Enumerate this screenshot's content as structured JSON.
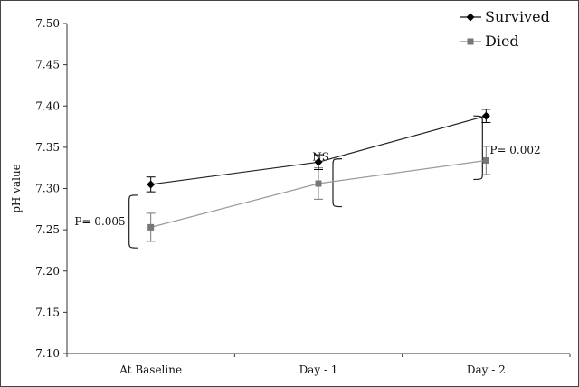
{
  "chart_data": {
    "type": "line",
    "categories": [
      "At Baseline",
      "Day - 1",
      "Day - 2"
    ],
    "ylabel": "pH value",
    "ylim": [
      7.1,
      7.5
    ],
    "yticks": [
      "7.10",
      "7.15",
      "7.20",
      "7.25",
      "7.30",
      "7.35",
      "7.40",
      "7.45",
      "7.50"
    ],
    "grid": false,
    "legend_position": "top-right",
    "series": [
      {
        "name": "Survived",
        "values": [
          7.305,
          7.332,
          7.388
        ],
        "err": [
          0.009,
          0.009,
          0.008
        ],
        "color": "#000000",
        "line_color": "#222222",
        "marker": "diamond"
      },
      {
        "name": "Died",
        "values": [
          7.253,
          7.306,
          7.334
        ],
        "err": [
          0.017,
          0.019,
          0.017
        ],
        "color": "#777777",
        "line_color": "#9a9a9a",
        "marker": "square"
      }
    ],
    "annotations": [
      {
        "text": "P= 0.005",
        "category": "At Baseline",
        "y_low": 7.228,
        "y_high": 7.292
      },
      {
        "text": "NS",
        "category": "Day - 1",
        "y_low": 7.278,
        "y_high": 7.336
      },
      {
        "text": "P= 0.002",
        "category": "Day - 2",
        "y_low": 7.311,
        "y_high": 7.388
      }
    ]
  }
}
